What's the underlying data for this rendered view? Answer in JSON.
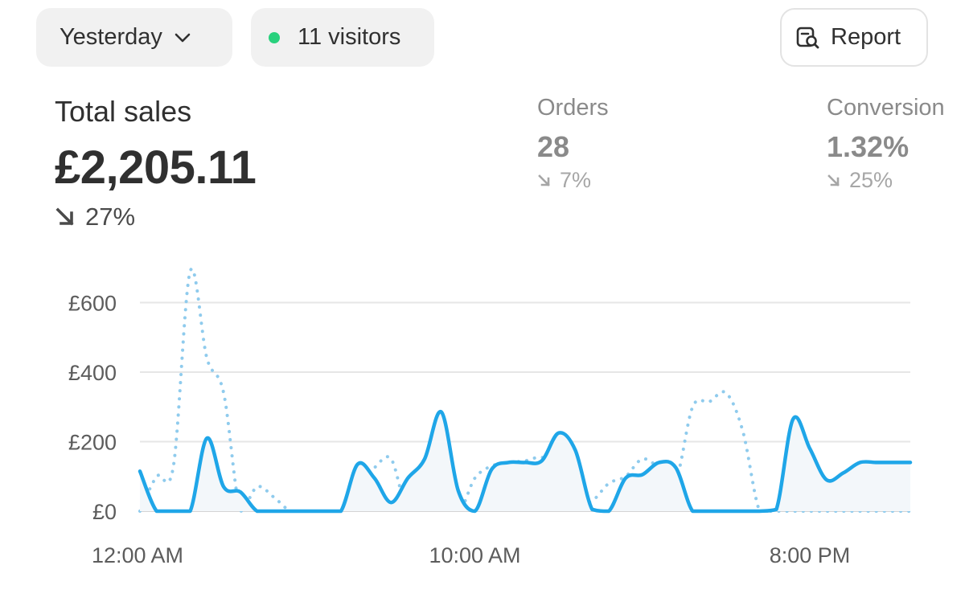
{
  "toolbar": {
    "date_label": "Yesterday",
    "visitors_label": "11 visitors",
    "report_label": "Report",
    "live_dot_color": "#29d17d"
  },
  "summary": {
    "total_sales_label": "Total sales",
    "total_sales_value": "£2,205.11",
    "total_sales_change": "27%",
    "orders_label": "Orders",
    "orders_value": "28",
    "orders_change": "7%",
    "conversion_label": "Conversion",
    "conversion_value": "1.32%",
    "conversion_change": "25%"
  },
  "chart_data": {
    "type": "line",
    "title": "",
    "xlabel": "",
    "ylabel": "",
    "x_tick_labels": [
      "12:00 AM",
      "10:00 AM",
      "8:00 PM"
    ],
    "y_tick_labels": [
      "£0",
      "£200",
      "£400",
      "£600"
    ],
    "y_ticks": [
      0,
      200,
      400,
      600
    ],
    "ylim": [
      0,
      700
    ],
    "grid": true,
    "x": [
      0,
      0.5,
      1,
      1.5,
      2,
      2.5,
      3,
      3.5,
      4,
      4.5,
      5,
      5.5,
      6,
      6.5,
      7,
      7.5,
      8,
      8.5,
      9,
      9.5,
      10,
      10.5,
      11,
      11.5,
      12,
      12.5,
      13,
      13.5,
      14,
      14.5,
      15,
      15.5,
      16,
      16.5,
      17,
      17.5,
      18,
      18.5,
      19,
      19.5,
      20,
      20.5,
      21,
      21.5,
      22,
      22.5,
      23
    ],
    "series": [
      {
        "style": "solid",
        "color": "#1fa6e8",
        "values": [
          115,
          0,
          0,
          0,
          210,
          70,
          55,
          0,
          0,
          0,
          0,
          0,
          0,
          135,
          95,
          25,
          95,
          150,
          285,
          60,
          0,
          120,
          140,
          140,
          145,
          225,
          175,
          5,
          0,
          95,
          105,
          140,
          125,
          0,
          0,
          0,
          0,
          0,
          5,
          265,
          180,
          90,
          110,
          140,
          140,
          140,
          140
        ]
      },
      {
        "style": "dotted",
        "color": "#8fcbed",
        "values": [
          0,
          100,
          130,
          690,
          440,
          340,
          0,
          70,
          40,
          0,
          0,
          0,
          0,
          75,
          125,
          150,
          0,
          60,
          100,
          0,
          95,
          130,
          140,
          145,
          155,
          130,
          30,
          30,
          80,
          100,
          150,
          125,
          90,
          300,
          315,
          340,
          230,
          0,
          0,
          0,
          0,
          0,
          0,
          0,
          0,
          0,
          0
        ]
      }
    ]
  }
}
